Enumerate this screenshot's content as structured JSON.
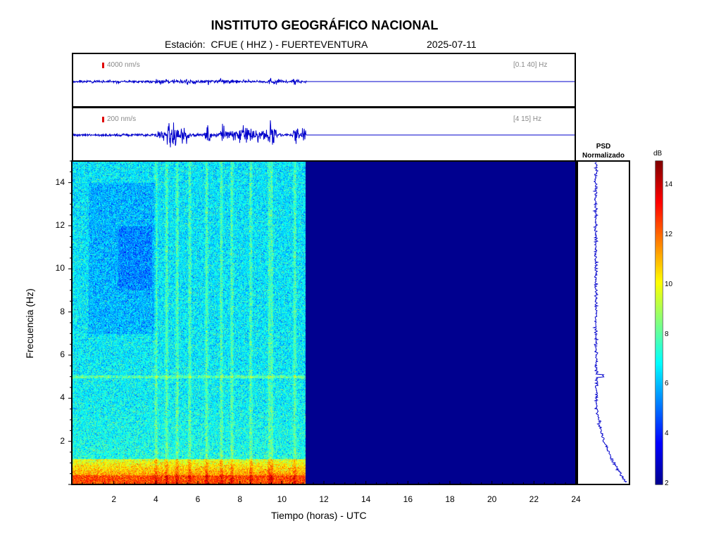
{
  "header": {
    "title": "INSTITUTO GEOGRÁFICO NACIONAL",
    "station_line": "Estación:  CFUE ( HHZ ) - FUERTEVENTURA",
    "date": "2025-07-11"
  },
  "traces": [
    {
      "scale_label": "4000 nm/s",
      "band_label": "[0.1 40] Hz"
    },
    {
      "scale_label": "200 nm/s",
      "band_label": "[4 15] Hz"
    }
  ],
  "psd": {
    "title_line1": "PSD",
    "title_line2": "Normalizado"
  },
  "colorbar": {
    "unit": "dB",
    "ticks": [
      "2",
      "4",
      "6",
      "8",
      "10",
      "12",
      "14"
    ],
    "range": [
      2,
      15
    ],
    "colors": [
      "#00008f",
      "#0000ff",
      "#0080ff",
      "#00ffff",
      "#80ff80",
      "#ffff00",
      "#ff8000",
      "#ff0000",
      "#800000"
    ]
  },
  "chart_data": {
    "type": "heatmap",
    "title": "INSTITUTO GEOGRÁFICO NACIONAL",
    "xlabel": "Tiempo (horas) - UTC",
    "ylabel": "Frecuencia  (Hz)",
    "xlim": [
      0,
      24
    ],
    "ylim": [
      0,
      15
    ],
    "x_ticks": [
      "2",
      "4",
      "6",
      "8",
      "10",
      "12",
      "14",
      "16",
      "18",
      "20",
      "22",
      "24"
    ],
    "y_ticks": [
      "2",
      "4",
      "6",
      "8",
      "10",
      "12",
      "14"
    ],
    "data_end_hour": 11.1,
    "noise_band_hz": [
      0,
      1.2
    ],
    "persistent_line_hz": 5.0,
    "vertical_bursts_hours": [
      4.0,
      4.5,
      5.0,
      5.6,
      6.4,
      7.1,
      7.6,
      8.5,
      9.4,
      9.5,
      10.6
    ]
  }
}
